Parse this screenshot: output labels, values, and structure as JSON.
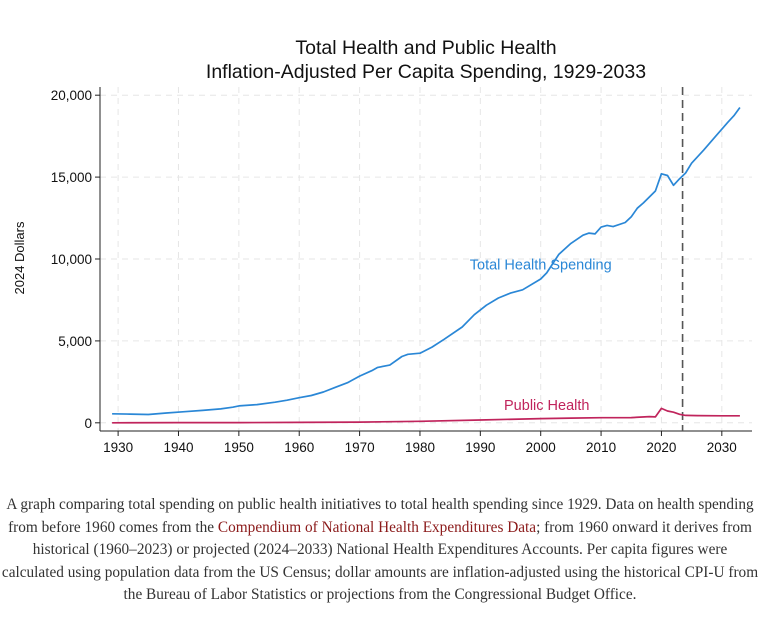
{
  "chart_data": {
    "type": "line",
    "title_line1": "Total Health and Public Health",
    "title_line2": "Inflation-Adjusted Per Capita Spending, 1929-2033",
    "ylabel": "2024 Dollars",
    "xlim": [
      1927,
      2035
    ],
    "ylim": [
      -500,
      20500
    ],
    "x_ticks": [
      1930,
      1940,
      1950,
      1960,
      1970,
      1980,
      1990,
      2000,
      2010,
      2020,
      2030
    ],
    "y_ticks": [
      0,
      5000,
      10000,
      15000,
      20000
    ],
    "x_tick_labels": [
      "1930",
      "1940",
      "1950",
      "1960",
      "1970",
      "1980",
      "1990",
      "2000",
      "2010",
      "2020",
      "2030"
    ],
    "y_tick_labels": [
      "0",
      "5,000",
      "10,000",
      "15,000",
      "20,000"
    ],
    "grid": true,
    "vline_x": 2023.5,
    "series": [
      {
        "name": "Total Health Spending",
        "color": "#2a87d6",
        "label_at": [
          2000,
          9350
        ],
        "points": [
          [
            1929,
            550
          ],
          [
            1932,
            530
          ],
          [
            1935,
            510
          ],
          [
            1938,
            600
          ],
          [
            1941,
            680
          ],
          [
            1944,
            760
          ],
          [
            1947,
            850
          ],
          [
            1949,
            950
          ],
          [
            1950,
            1030
          ],
          [
            1953,
            1110
          ],
          [
            1956,
            1260
          ],
          [
            1958,
            1380
          ],
          [
            1960,
            1530
          ],
          [
            1962,
            1670
          ],
          [
            1964,
            1880
          ],
          [
            1966,
            2170
          ],
          [
            1968,
            2450
          ],
          [
            1970,
            2850
          ],
          [
            1972,
            3180
          ],
          [
            1973,
            3380
          ],
          [
            1975,
            3520
          ],
          [
            1977,
            4050
          ],
          [
            1978,
            4180
          ],
          [
            1980,
            4250
          ],
          [
            1982,
            4620
          ],
          [
            1984,
            5100
          ],
          [
            1987,
            5850
          ],
          [
            1989,
            6600
          ],
          [
            1991,
            7180
          ],
          [
            1993,
            7620
          ],
          [
            1995,
            7920
          ],
          [
            1997,
            8120
          ],
          [
            2000,
            8780
          ],
          [
            2001,
            9150
          ],
          [
            2003,
            10280
          ],
          [
            2005,
            10950
          ],
          [
            2007,
            11450
          ],
          [
            2008,
            11580
          ],
          [
            2009,
            11530
          ],
          [
            2010,
            11950
          ],
          [
            2011,
            12050
          ],
          [
            2012,
            11980
          ],
          [
            2014,
            12230
          ],
          [
            2015,
            12580
          ],
          [
            2016,
            13100
          ],
          [
            2017,
            13420
          ],
          [
            2019,
            14150
          ],
          [
            2020,
            15200
          ],
          [
            2021,
            15100
          ],
          [
            2022,
            14500
          ],
          [
            2023,
            14900
          ],
          [
            2024,
            15250
          ],
          [
            2025,
            15850
          ],
          [
            2027,
            16650
          ],
          [
            2029,
            17500
          ],
          [
            2031,
            18350
          ],
          [
            2032,
            18750
          ],
          [
            2033,
            19250
          ]
        ]
      },
      {
        "name": "Public Health",
        "color": "#c0245c",
        "label_at": [
          2001,
          780
        ],
        "points": [
          [
            1929,
            0
          ],
          [
            1940,
            10
          ],
          [
            1950,
            15
          ],
          [
            1960,
            25
          ],
          [
            1970,
            45
          ],
          [
            1980,
            95
          ],
          [
            1990,
            170
          ],
          [
            2000,
            260
          ],
          [
            2005,
            290
          ],
          [
            2010,
            310
          ],
          [
            2015,
            320
          ],
          [
            2018,
            380
          ],
          [
            2019,
            360
          ],
          [
            2020,
            880
          ],
          [
            2021,
            720
          ],
          [
            2022,
            650
          ],
          [
            2023,
            520
          ],
          [
            2024,
            450
          ],
          [
            2026,
            440
          ],
          [
            2030,
            430
          ],
          [
            2033,
            430
          ]
        ]
      }
    ]
  },
  "caption": {
    "text_before": "A graph comparing total spending on public health initiatives to total health spending since 1929. Data on health spending from before 1960 comes from the ",
    "link_text": "Compendium of National Health Expenditures Data",
    "text_after": "; from 1960 onward it derives from historical (1960–2023) or projected (2024–2033) National Health Expenditures Accounts. Per capita figures were calculated using population data from the US Census; dollar amounts are inflation-adjusted using the historical CPI-U from the Bureau of Labor Statistics or projections from the Congressional Budget Office."
  }
}
